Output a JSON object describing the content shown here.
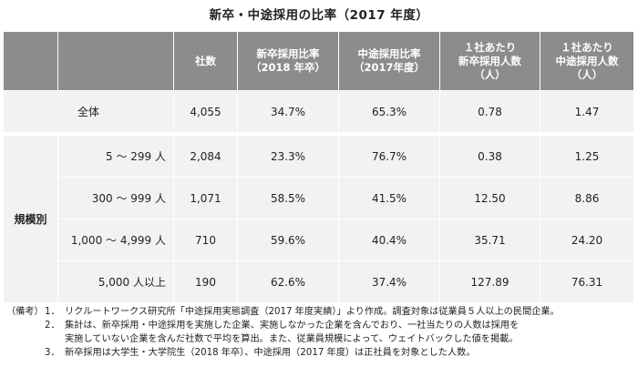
{
  "title": "新卒・中途採用の比率（2017 年度）",
  "table": {
    "headers": [
      "",
      "",
      "社数",
      "新卒採用比率\n（2018 年卒）",
      "中途採用比率\n（2017年度）",
      "１社あたり\n新卒採用人数\n（人）",
      "１社あたり\n中途採用人数\n（人）"
    ],
    "total_row": {
      "label": "全体",
      "values": [
        "4,055",
        "34.7%",
        "65.3%",
        "0.78",
        "1.47"
      ]
    },
    "group_label": "規模別",
    "group_rows": [
      {
        "label": "5 ～ 299 人",
        "values": [
          "2,084",
          "23.3%",
          "76.7%",
          "0.38",
          "1.25"
        ]
      },
      {
        "label": "300 ～ 999 人",
        "values": [
          "1,071",
          "58.5%",
          "41.5%",
          "12.50",
          "8.86"
        ]
      },
      {
        "label": "1,000 ～ 4,999 人",
        "values": [
          "710",
          "59.6%",
          "40.4%",
          "35.71",
          "24.20"
        ]
      },
      {
        "label": "5,000 人以上",
        "values": [
          "190",
          "62.6%",
          "37.4%",
          "127.89",
          "76.31"
        ]
      }
    ]
  },
  "notes": {
    "head": "（備考）",
    "items": [
      {
        "num": "1．",
        "lines": [
          "リクルートワークス研究所「中途採用実態調査（2017 年度実績）」より作成。調査対象は従業員５人以上の民間企業。"
        ]
      },
      {
        "num": "2．",
        "lines": [
          "集計は、新卒採用・中途採用を実施した企業、実施しなかった企業を含んでおり、一社当たりの人数は採用を",
          "実施していない企業を含んだ社数で平均を算出。また、従業員規模によって、ウェイトバックした値を掲載。"
        ]
      },
      {
        "num": "3．",
        "lines": [
          "新卒採用は大学生・大学院生（2018 年卒）、中途採用（2017 年度）は正社員を対象とした人数。"
        ]
      }
    ]
  }
}
